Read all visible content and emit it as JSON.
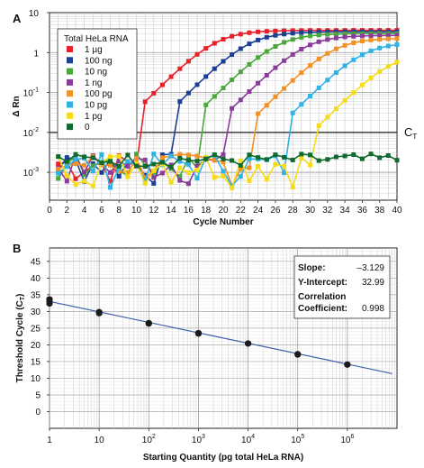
{
  "chart_data": [
    {
      "panel": "A",
      "type": "line",
      "xlabel": "Cycle Number",
      "ylabel": "Δ Rn",
      "y_scale": "log",
      "xlim": [
        0,
        40
      ],
      "ylim": [
        0.0002,
        10
      ],
      "x_ticks": [
        0,
        2,
        4,
        6,
        8,
        10,
        12,
        14,
        16,
        18,
        20,
        22,
        24,
        26,
        28,
        30,
        32,
        34,
        36,
        38,
        40
      ],
      "y_ticks": [
        {
          "value": 10,
          "label": "10"
        },
        {
          "value": 1,
          "label": "1"
        },
        {
          "value": 0.1,
          "label": "10",
          "exp": "-1"
        },
        {
          "value": 0.01,
          "label": "10",
          "exp": "-2"
        },
        {
          "value": 0.001,
          "label": "10",
          "exp": "-3"
        }
      ],
      "threshold": {
        "value": 0.01,
        "label": "C",
        "sub": "T"
      },
      "legend_title": "Total HeLa RNA",
      "legend_position": "top-left",
      "grid": true,
      "series": [
        {
          "name": "1 µg",
          "color": "#e8202a",
          "ct": 13.5,
          "plateau": 3.6
        },
        {
          "name": "100 ng",
          "color": "#1b3f94",
          "ct": 17.3,
          "plateau": 3.3
        },
        {
          "name": "10 ng",
          "color": "#4aa83b",
          "ct": 20.5,
          "plateau": 3.0
        },
        {
          "name": "1 ng",
          "color": "#8a3c9a",
          "ct": 23.7,
          "plateau": 2.7
        },
        {
          "name": "100 pg",
          "color": "#f39224",
          "ct": 27.0,
          "plateau": 2.3
        },
        {
          "name": "10 pg",
          "color": "#2fb2e6",
          "ct": 30.4,
          "plateau": 1.8
        },
        {
          "name": "1 pg",
          "color": "#f6dc17",
          "ct": 33.7,
          "plateau": 1.0
        },
        {
          "name": "0",
          "color": "#0f6a2f",
          "ct": null,
          "plateau": 0.002
        }
      ]
    },
    {
      "panel": "B",
      "type": "scatter",
      "xlabel": "Starting Quantity (pg total HeLa RNA)",
      "ylabel": "Threshold Cycle (C",
      "ylabel_sub": "T",
      "ylabel_end": ")",
      "x_scale": "log",
      "xlim": [
        1,
        10000000
      ],
      "ylim": [
        -5,
        49
      ],
      "x_ticks": [
        {
          "value": 1,
          "label": "1"
        },
        {
          "value": 10,
          "label": "10"
        },
        {
          "value": 100,
          "label": "10",
          "exp": "2"
        },
        {
          "value": 1000,
          "label": "10",
          "exp": "3"
        },
        {
          "value": 10000,
          "label": "10",
          "exp": "4"
        },
        {
          "value": 100000,
          "label": "10",
          "exp": "5"
        },
        {
          "value": 1000000,
          "label": "10",
          "exp": "6"
        }
      ],
      "y_ticks": [
        0,
        5,
        10,
        15,
        20,
        25,
        30,
        35,
        40,
        45
      ],
      "points": [
        {
          "x": 1,
          "y": 33.7
        },
        {
          "x": 1,
          "y": 33.0
        },
        {
          "x": 1,
          "y": 32.3
        },
        {
          "x": 10,
          "y": 29.9
        },
        {
          "x": 10,
          "y": 29.4
        },
        {
          "x": 100,
          "y": 26.6
        },
        {
          "x": 100,
          "y": 26.3
        },
        {
          "x": 1000,
          "y": 23.6
        },
        {
          "x": 1000,
          "y": 23.3
        },
        {
          "x": 10000,
          "y": 20.5
        },
        {
          "x": 10000,
          "y": 20.3
        },
        {
          "x": 100000,
          "y": 17.3
        },
        {
          "x": 100000,
          "y": 17.0
        },
        {
          "x": 1000000,
          "y": 14.2
        },
        {
          "x": 1000000,
          "y": 14.0
        }
      ],
      "fit_line": {
        "slope": -3.129,
        "intercept": 32.99,
        "x_end": 8000000
      },
      "grid": true,
      "stats": {
        "slope_label": "Slope:",
        "slope_value": "–3.129",
        "intercept_label": "Y-Intercept:",
        "intercept_value": "32.99",
        "corr_label_1": "Correlation",
        "corr_label_2": "Coefficient:",
        "corr_value": "0.998"
      }
    }
  ]
}
